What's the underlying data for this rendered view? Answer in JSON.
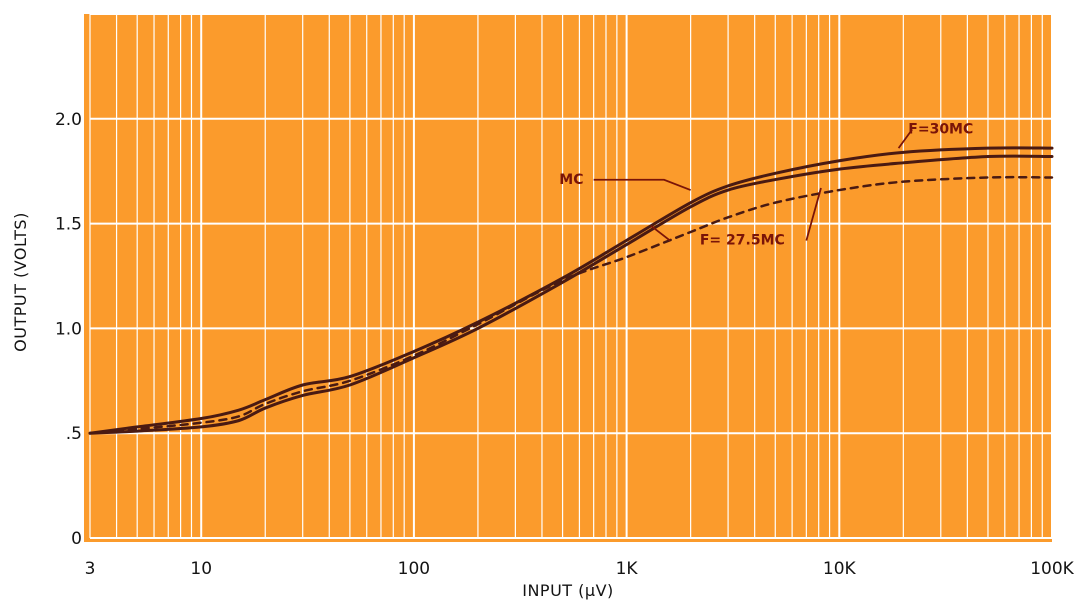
{
  "chart_data": {
    "type": "line",
    "xlabel": "INPUT (µV)",
    "ylabel": "OUTPUT (VOLTS)",
    "x_scale": "log",
    "xlim": [
      3,
      100000
    ],
    "ylim": [
      0,
      2.0
    ],
    "x_ticks": [
      {
        "value": 3,
        "label": "3"
      },
      {
        "value": 10,
        "label": "10"
      },
      {
        "value": 100,
        "label": "100"
      },
      {
        "value": 1000,
        "label": "1K"
      },
      {
        "value": 10000,
        "label": "10K"
      },
      {
        "value": 100000,
        "label": "100K"
      }
    ],
    "y_ticks": [
      {
        "value": 0,
        "label": "0"
      },
      {
        "value": 0.5,
        "label": ".5"
      },
      {
        "value": 1.0,
        "label": "1.0"
      },
      {
        "value": 1.5,
        "label": "1.5"
      },
      {
        "value": 2.0,
        "label": "2.0"
      }
    ],
    "grid": true,
    "colors": {
      "background": "#fb9b2c",
      "grid": "#ffffff",
      "line": "#4a1a12",
      "annotation": "#7a1408"
    },
    "series": [
      {
        "name": "F=30MC",
        "style": "solid",
        "x": [
          3,
          5,
          10,
          15,
          20,
          30,
          50,
          100,
          200,
          500,
          1000,
          2000,
          3000,
          5000,
          10000,
          20000,
          50000,
          100000
        ],
        "y": [
          0.5,
          0.53,
          0.57,
          0.61,
          0.66,
          0.73,
          0.77,
          0.89,
          1.03,
          1.24,
          1.42,
          1.6,
          1.68,
          1.74,
          1.8,
          1.84,
          1.86,
          1.86
        ]
      },
      {
        "name": "MC",
        "style": "solid",
        "x": [
          3,
          5,
          10,
          15,
          20,
          30,
          50,
          100,
          200,
          500,
          1000,
          2000,
          3000,
          5000,
          10000,
          20000,
          50000,
          100000
        ],
        "y": [
          0.5,
          0.51,
          0.53,
          0.56,
          0.62,
          0.68,
          0.73,
          0.86,
          1.0,
          1.22,
          1.4,
          1.58,
          1.66,
          1.71,
          1.76,
          1.79,
          1.82,
          1.82
        ]
      },
      {
        "name": "F=27.5MC",
        "style": "dashed",
        "x": [
          3,
          5,
          10,
          15,
          20,
          30,
          50,
          100,
          200,
          500,
          1000,
          2000,
          3000,
          5000,
          10000,
          20000,
          50000,
          100000
        ],
        "y": [
          0.5,
          0.52,
          0.55,
          0.58,
          0.64,
          0.7,
          0.75,
          0.87,
          1.02,
          1.23,
          1.34,
          1.46,
          1.53,
          1.6,
          1.66,
          1.7,
          1.72,
          1.72
        ]
      }
    ],
    "annotations": [
      {
        "text": "F=30MC",
        "x": 30000,
        "y": 1.93
      },
      {
        "text": "MC",
        "x": 550,
        "y": 1.69
      },
      {
        "text": "F= 27.5MC",
        "x": 3500,
        "y": 1.4
      }
    ]
  }
}
